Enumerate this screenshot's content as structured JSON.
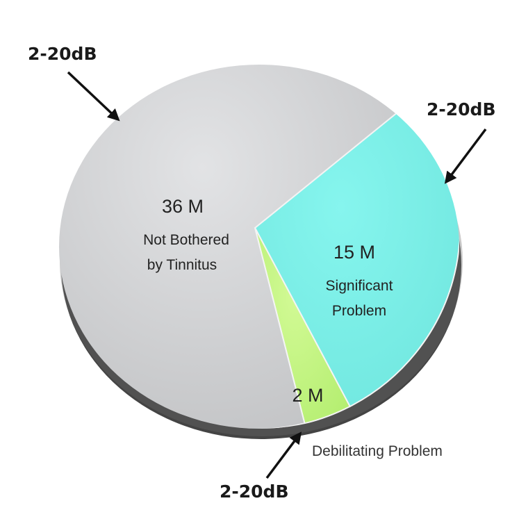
{
  "chart_data": {
    "type": "pie",
    "title": "",
    "slices": [
      {
        "value": 36,
        "value_label": "36 M",
        "label_lines": [
          "Not Bothered",
          "by Tinnitus"
        ],
        "color": "#d4d5d7"
      },
      {
        "value": 15,
        "value_label": "15 M",
        "label_lines": [
          "Significant",
          "Problem"
        ],
        "color": "#7ff1ea"
      },
      {
        "value": 2,
        "value_label": "2 M",
        "label_lines": [
          "Debilitating Problem"
        ],
        "color": "#c8f78a"
      }
    ],
    "callouts": [
      {
        "text": "2-20dB"
      },
      {
        "text": "2-20dB"
      },
      {
        "text": "2-20dB"
      }
    ]
  }
}
